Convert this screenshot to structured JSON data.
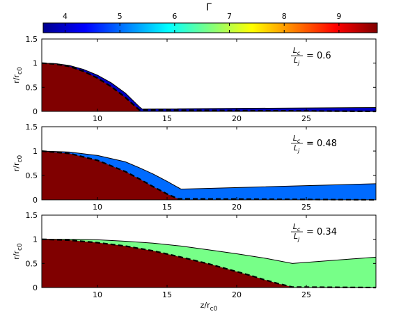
{
  "colorbar": {
    "title": "Γ",
    "min": 3.6,
    "max": 9.7,
    "ticks": [
      4,
      5,
      6,
      7,
      8,
      9
    ],
    "colormap": "jet"
  },
  "chart_data": [
    {
      "type": "area",
      "x_range": [
        6,
        30
      ],
      "ylim": [
        0,
        1.5
      ],
      "xticks": [
        10,
        15,
        20,
        25
      ],
      "yticks": [
        0,
        0.5,
        1,
        1.5
      ],
      "ylabel": "r/r_c0",
      "annotation": {
        "num": "L_c",
        "den": "L_j",
        "value": "= 0.6"
      },
      "outer_boundary": {
        "x": [
          6,
          7,
          8,
          9,
          10,
          11,
          12,
          13,
          13.2,
          30
        ],
        "y": [
          1.0,
          0.99,
          0.95,
          0.87,
          0.75,
          0.59,
          0.38,
          0.1,
          0.05,
          0.08
        ]
      },
      "recollimation_shock": {
        "x": [
          6,
          7,
          8,
          9,
          10,
          11,
          12,
          13
        ],
        "y": [
          1.0,
          0.98,
          0.93,
          0.83,
          0.69,
          0.51,
          0.29,
          0.03
        ]
      },
      "shocked_layer_gamma": 4.0,
      "core_gamma": 9.7
    },
    {
      "type": "area",
      "x_range": [
        6,
        30
      ],
      "ylim": [
        0,
        1.5
      ],
      "xticks": [
        10,
        15,
        20,
        25
      ],
      "yticks": [
        0,
        0.5,
        1,
        1.5
      ],
      "ylabel": "r/r_c0",
      "annotation": {
        "num": "L_c",
        "den": "L_j",
        "value": "= 0.48"
      },
      "outer_boundary": {
        "x": [
          6,
          8,
          10,
          12,
          13,
          14,
          15,
          16,
          30
        ],
        "y": [
          1.0,
          0.98,
          0.91,
          0.78,
          0.66,
          0.53,
          0.38,
          0.22,
          0.33
        ]
      },
      "recollimation_shock": {
        "x": [
          6,
          8,
          10,
          12,
          13,
          14,
          15,
          15.8
        ],
        "y": [
          1.0,
          0.95,
          0.81,
          0.58,
          0.43,
          0.27,
          0.12,
          0.02
        ]
      },
      "shocked_layer_gamma": 5.0,
      "core_gamma": 9.7
    },
    {
      "type": "area",
      "x_range": [
        6,
        30
      ],
      "ylim": [
        0,
        1.5
      ],
      "xticks": [
        10,
        15,
        20,
        25
      ],
      "yticks": [
        0,
        0.5,
        1,
        1.5
      ],
      "ylabel": "r/r_c0",
      "xlabel": "z/r_c0",
      "annotation": {
        "num": "L_c",
        "den": "L_j",
        "value": "= 0.34"
      },
      "outer_boundary": {
        "x": [
          6,
          8,
          10,
          12,
          14,
          16,
          18,
          20,
          22,
          24,
          30
        ],
        "y": [
          1.0,
          1.0,
          0.99,
          0.96,
          0.92,
          0.86,
          0.78,
          0.7,
          0.61,
          0.5,
          0.63
        ]
      },
      "recollimation_shock": {
        "x": [
          6,
          8,
          10,
          12,
          14,
          16,
          18,
          20,
          21,
          22,
          23,
          24
        ],
        "y": [
          1.0,
          0.98,
          0.93,
          0.86,
          0.76,
          0.63,
          0.49,
          0.33,
          0.25,
          0.16,
          0.08,
          0.01
        ]
      },
      "shocked_layer_gamma": 6.6,
      "core_gamma": 9.7
    }
  ]
}
